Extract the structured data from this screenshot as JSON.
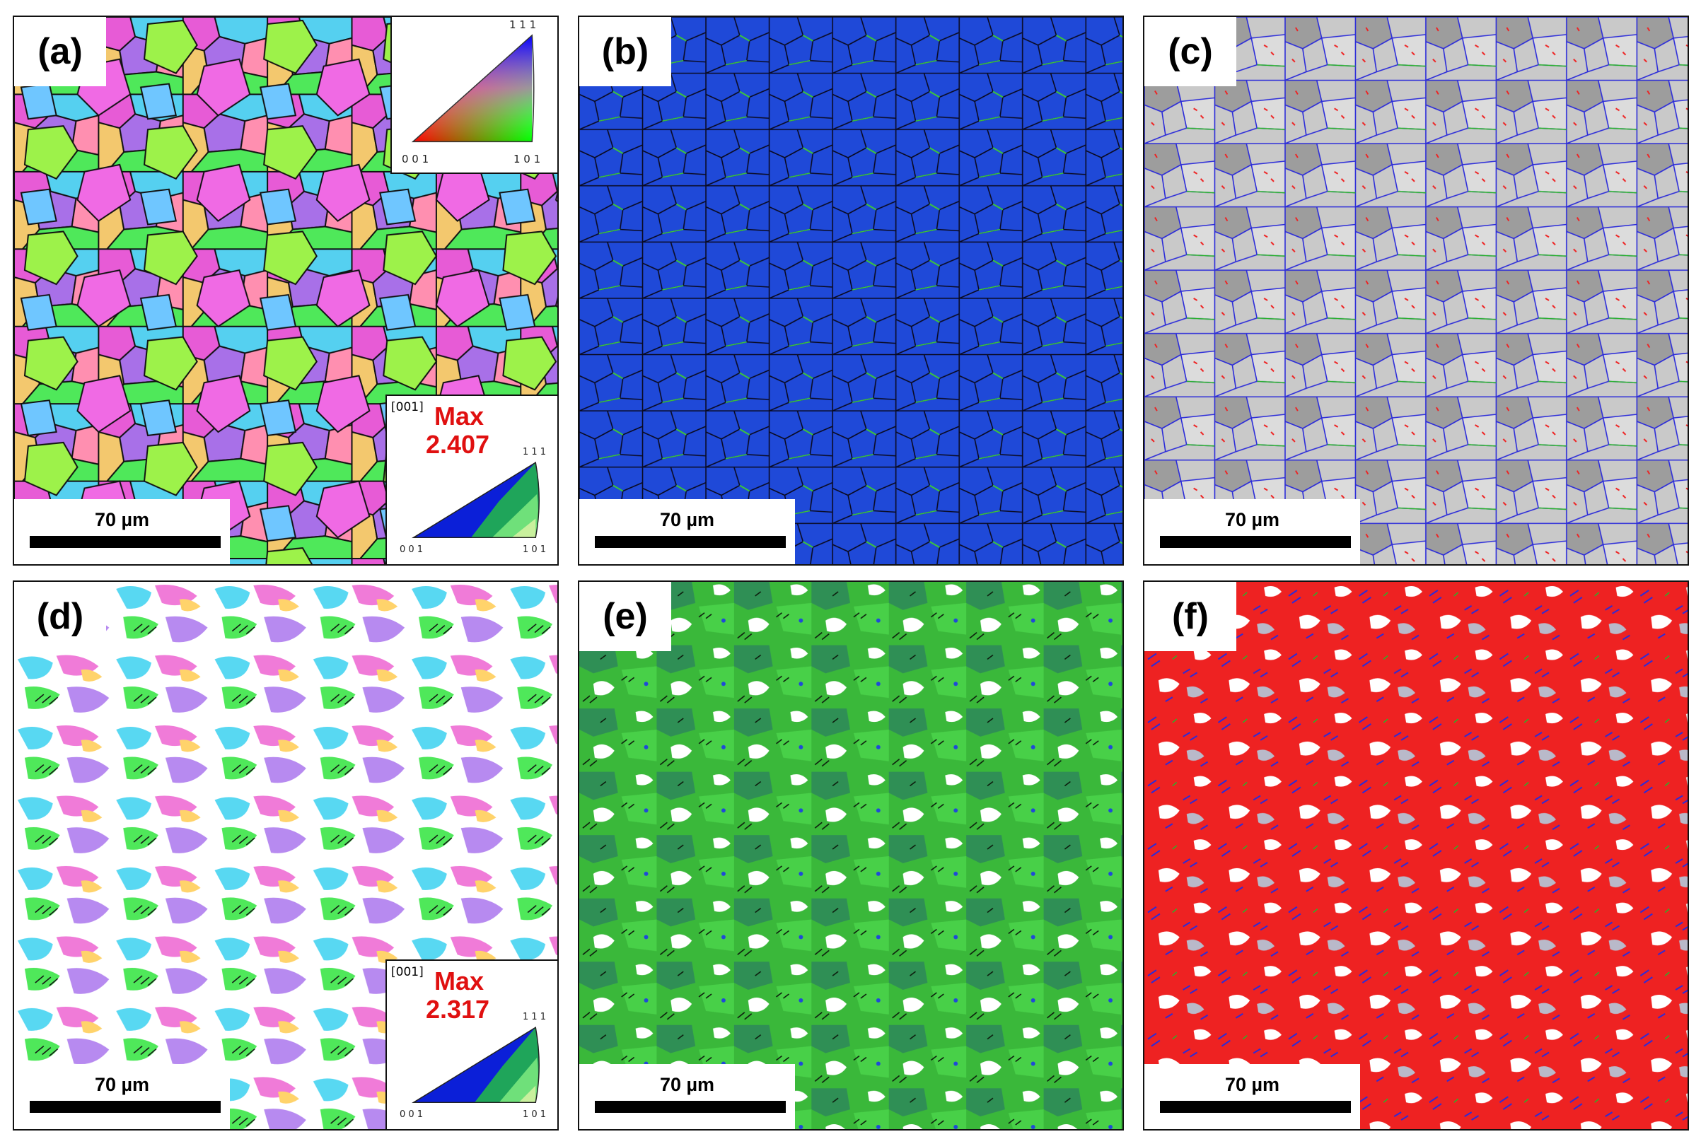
{
  "figure": {
    "panels": [
      {
        "id": "a",
        "label": "(a)",
        "scale_bar": "70 µm",
        "type": "ipf-map",
        "ipf_key": {
          "top": "1 1 1",
          "bottom_left": "0 0 1",
          "bottom_right": "1 0 1"
        },
        "pole_figure": {
          "direction": "[001]",
          "max_label": "Max",
          "max_value": "2.407",
          "corner_left": "0 0 1",
          "corner_right": "1 0 1",
          "corner_top": "1 1 1"
        }
      },
      {
        "id": "b",
        "label": "(b)",
        "scale_bar": "70 µm",
        "type": "kam-map"
      },
      {
        "id": "c",
        "label": "(c)",
        "scale_bar": "70 µm",
        "type": "boundary-map"
      },
      {
        "id": "d",
        "label": "(d)",
        "scale_bar": "70 µm",
        "type": "ipf-map",
        "pole_figure": {
          "direction": "[001]",
          "max_label": "Max",
          "max_value": "2.317",
          "corner_left": "0 0 1",
          "corner_right": "1 0 1",
          "corner_top": "1 1 1"
        }
      },
      {
        "id": "e",
        "label": "(e)",
        "scale_bar": "70 µm",
        "type": "kam-map"
      },
      {
        "id": "f",
        "label": "(f)",
        "scale_bar": "70 µm",
        "type": "boundary-map"
      }
    ],
    "colors": {
      "kam_blue": "#1f49d8",
      "kam_green": "#3cc83c",
      "boundary_blue": "#2b2bd9",
      "boundary_green": "#28b428",
      "boundary_red": "#ee2222",
      "pole_max_text": "#e01010"
    }
  }
}
